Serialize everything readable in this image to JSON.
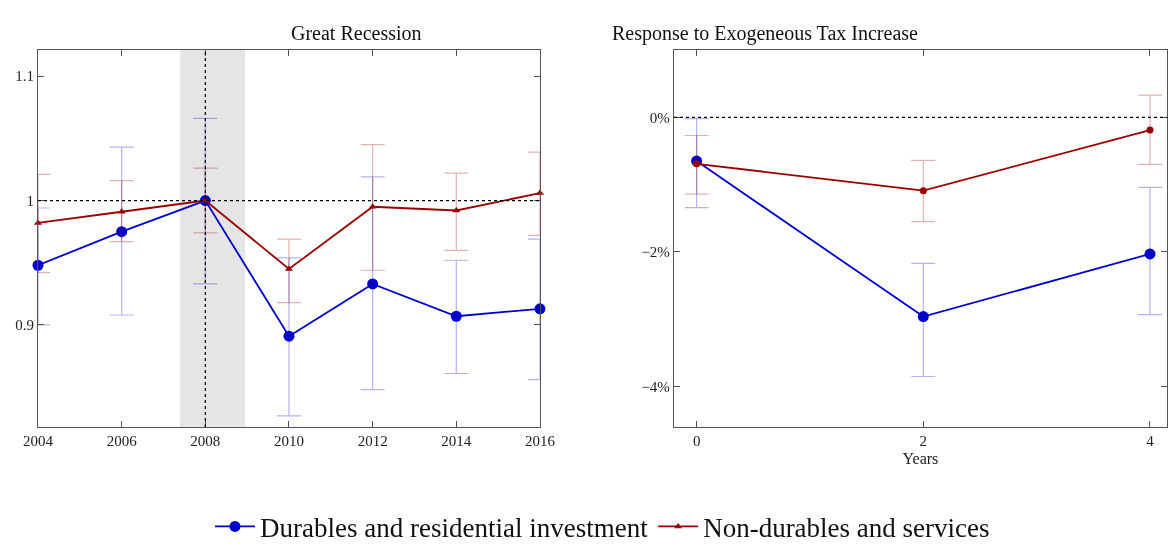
{
  "chart_data": [
    {
      "type": "line",
      "title": "Great Recession",
      "x": [
        2004,
        2006,
        2008,
        2010,
        2012,
        2014,
        2016
      ],
      "xlim": [
        2004,
        2016
      ],
      "xticks": [
        2004,
        2006,
        2008,
        2010,
        2012,
        2014,
        2016
      ],
      "ylim": [
        0.818,
        1.121
      ],
      "yticks": [
        0.9,
        1,
        1.1
      ],
      "grid": false,
      "legend": "bottom",
      "line_style": "solid",
      "series": [
        {
          "name": "Durables and residential investment",
          "color": "#0000cc",
          "marker": "circle",
          "values": [
            0.948,
            0.975,
            1.0,
            0.891,
            0.933,
            0.907,
            0.913
          ],
          "errors": [
            [
              0.9,
              0.994
            ],
            [
              0.908,
              1.043
            ],
            [
              0.933,
              1.066
            ],
            [
              0.827,
              0.954
            ],
            [
              0.848,
              1.019
            ],
            [
              0.861,
              0.952
            ],
            [
              0.856,
              0.969
            ]
          ]
        },
        {
          "name": "Non-durables and services",
          "color": "#990000",
          "marker": "triangle",
          "values": [
            0.982,
            0.991,
            1.0,
            0.945,
            0.995,
            0.992,
            1.006
          ],
          "errors": [
            [
              0.942,
              1.021
            ],
            [
              0.967,
              1.016
            ],
            [
              0.974,
              1.026
            ],
            [
              0.918,
              0.969
            ],
            [
              0.944,
              1.045
            ],
            [
              0.96,
              1.022
            ],
            [
              0.972,
              1.039
            ]
          ]
        }
      ],
      "ref_lines": [
        {
          "axis": "y",
          "value": 1,
          "line_style": "dotted",
          "color": "#000000"
        },
        {
          "axis": "x",
          "value": 2008,
          "line_style": "dotted",
          "color": "#000000"
        }
      ],
      "bands": [
        {
          "axis": "x",
          "from": 2007.4,
          "to": 2008.95,
          "color": "#e5e5e5"
        }
      ]
    },
    {
      "type": "line",
      "title": "Response to Exogeneous Tax Increase",
      "xlabel": "Years",
      "x": [
        0,
        2,
        4
      ],
      "xlim": [
        -0.2,
        4.15
      ],
      "xticks": [
        0,
        2,
        4
      ],
      "ylim": [
        -4.6,
        1.0
      ],
      "yticks": [
        {
          "value": 0,
          "label": "0%"
        },
        {
          "value": -2,
          "label": "−2%"
        },
        {
          "value": -4,
          "label": "−4%"
        }
      ],
      "grid": false,
      "legend": false,
      "line_style": "solid",
      "series": [
        {
          "color": "#0000cc",
          "marker": "circle",
          "values": [
            -0.65,
            -2.96,
            -2.03
          ],
          "errors": [
            [
              -1.34,
              -0.02
            ],
            [
              -3.85,
              -2.17
            ],
            [
              -2.93,
              -1.04
            ]
          ]
        },
        {
          "color": "#990000",
          "marker": "circle",
          "values": [
            -0.69,
            -1.09,
            -0.19
          ],
          "errors": [
            [
              -1.14,
              -0.27
            ],
            [
              -1.55,
              -0.64
            ],
            [
              -0.7,
              0.33
            ]
          ]
        }
      ],
      "ref_lines": [
        {
          "axis": "y",
          "value": 0,
          "line_style": "dotted",
          "color": "#000000"
        }
      ]
    }
  ]
}
